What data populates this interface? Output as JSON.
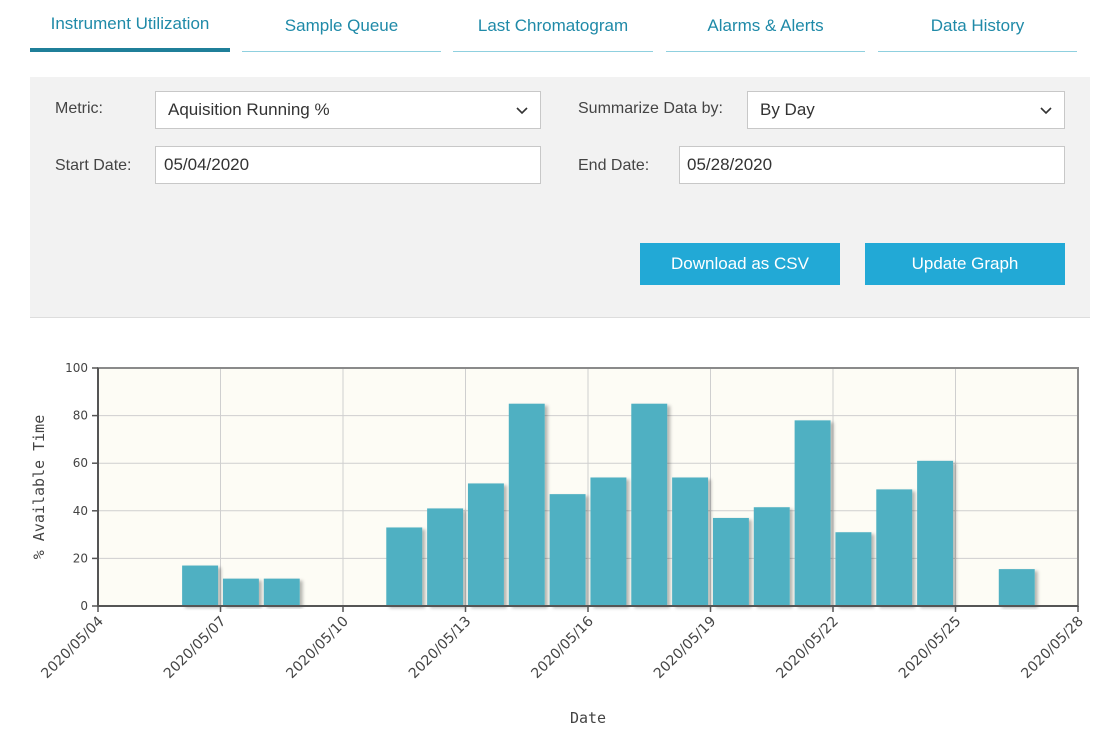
{
  "tabs": [
    {
      "label": "Instrument Utilization",
      "active": true
    },
    {
      "label": "Sample Queue",
      "active": false
    },
    {
      "label": "Last Chromatogram",
      "active": false
    },
    {
      "label": "Alarms & Alerts",
      "active": false
    },
    {
      "label": "Data History",
      "active": false
    }
  ],
  "filters": {
    "metric_label": "Metric:",
    "metric_value": "Aquisition Running %",
    "summarize_label": "Summarize Data by:",
    "summarize_value": "By Day",
    "start_label": "Start Date:",
    "start_value": "05/04/2020",
    "end_label": "End Date:",
    "end_value": "05/28/2020"
  },
  "buttons": {
    "download": "Download as CSV",
    "update": "Update Graph"
  },
  "colors": {
    "accent": "#22a9d6",
    "tab_text": "#1f8aa8",
    "bar": "#4fb0c2",
    "plot_bg": "#fdfcf5"
  },
  "chart_data": {
    "type": "bar",
    "xlabel": "Date",
    "ylabel": "% Available Time",
    "ylim": [
      0,
      100
    ],
    "yticks": [
      "0",
      "20",
      "40",
      "60",
      "80",
      "100"
    ],
    "xticks": [
      "2020/05/04",
      "2020/05/07",
      "2020/05/10",
      "2020/05/13",
      "2020/05/16",
      "2020/05/19",
      "2020/05/22",
      "2020/05/25",
      "2020/05/28"
    ],
    "grid": true,
    "categories": [
      "2020/05/04",
      "2020/05/05",
      "2020/05/06",
      "2020/05/07",
      "2020/05/08",
      "2020/05/09",
      "2020/05/10",
      "2020/05/11",
      "2020/05/12",
      "2020/05/13",
      "2020/05/14",
      "2020/05/15",
      "2020/05/16",
      "2020/05/17",
      "2020/05/18",
      "2020/05/19",
      "2020/05/20",
      "2020/05/21",
      "2020/05/22",
      "2020/05/23",
      "2020/05/24",
      "2020/05/25",
      "2020/05/26",
      "2020/05/27"
    ],
    "values": [
      0,
      0,
      17,
      11.5,
      11.5,
      0,
      0,
      33,
      41,
      51.5,
      85,
      47,
      54,
      85,
      54,
      37,
      41.5,
      78,
      31,
      49,
      61,
      0,
      15.5,
      0
    ]
  }
}
